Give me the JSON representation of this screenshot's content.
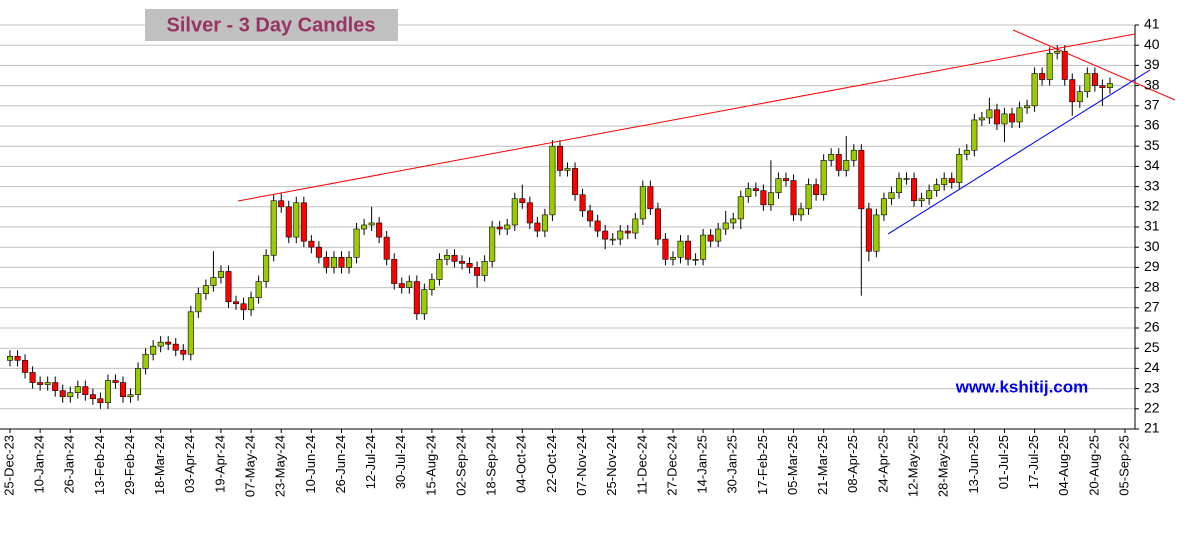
{
  "chart_data": {
    "type": "candlestick",
    "title": "Silver - 3 Day Candles",
    "watermark": "www.kshitij.com",
    "categories": [
      "25-Dec-23",
      null,
      null,
      null,
      "10-Jan-24",
      null,
      null,
      null,
      "26-Jan-24",
      null,
      null,
      null,
      "13-Feb-24",
      null,
      null,
      null,
      "29-Feb-24",
      null,
      null,
      null,
      "18-Mar-24",
      null,
      null,
      null,
      "03-Apr-24",
      null,
      null,
      null,
      "19-Apr-24",
      null,
      null,
      null,
      "07-May-24",
      null,
      null,
      null,
      "23-May-24",
      null,
      null,
      null,
      "10-Jun-24",
      null,
      null,
      null,
      "26-Jun-24",
      null,
      null,
      null,
      "12-Jul-24",
      null,
      null,
      null,
      "30-Jul-24",
      null,
      null,
      null,
      "15-Aug-24",
      null,
      null,
      null,
      "02-Sep-24",
      null,
      null,
      null,
      "18-Sep-24",
      null,
      null,
      null,
      "04-Oct-24",
      null,
      null,
      null,
      "22-Oct-24",
      null,
      null,
      null,
      "07-Nov-24",
      null,
      null,
      null,
      "25-Nov-24",
      null,
      null,
      null,
      "11-Dec-24",
      null,
      null,
      null,
      "27-Dec-24",
      null,
      null,
      null,
      "14-Jan-25",
      null,
      null,
      null,
      "30-Jan-25",
      null,
      null,
      null,
      "17-Feb-25",
      null,
      null,
      null,
      "05-Mar-25",
      null,
      null,
      null,
      "21-Mar-25",
      null,
      null,
      null,
      "08-Apr-25",
      null,
      null,
      null,
      "24-Apr-25",
      null,
      null,
      null,
      "12-May-25",
      null,
      null,
      null,
      "28-May-25",
      null,
      null,
      null,
      "13-Jun-25",
      null,
      null,
      null,
      "01-Jul-25",
      null,
      null,
      null,
      "17-Jul-25",
      null,
      null,
      null,
      "04-Aug-25",
      null,
      null,
      null,
      "20-Aug-25",
      null,
      null,
      null,
      "05-Sep-25"
    ],
    "open": [
      24.4,
      24.6,
      24.4,
      23.8,
      23.3,
      23.2,
      23.3,
      22.9,
      22.6,
      22.8,
      23.1,
      22.7,
      22.5,
      22.3,
      23.4,
      23.3,
      22.6,
      22.7,
      24.0,
      24.7,
      25.1,
      25.3,
      25.2,
      24.9,
      24.7,
      26.8,
      27.7,
      28.1,
      28.5,
      28.8,
      27.3,
      27.2,
      26.9,
      27.5,
      28.3,
      29.6,
      32.3,
      32.0,
      30.5,
      32.2,
      30.3,
      30.0,
      29.5,
      29.0,
      29.5,
      29.0,
      29.5,
      30.9,
      31.1,
      31.2,
      30.5,
      29.4,
      28.2,
      28.0,
      28.3,
      26.7,
      27.9,
      28.4,
      29.4,
      29.6,
      29.3,
      29.2,
      29.0,
      28.6,
      29.3,
      31.0,
      30.9,
      31.1,
      32.4,
      32.2,
      31.2,
      30.8,
      31.6,
      35.0,
      33.8,
      33.9,
      32.6,
      31.8,
      31.3,
      30.8,
      30.4,
      30.4,
      30.8,
      30.7,
      31.4,
      33.0,
      31.9,
      30.4,
      29.4,
      29.5,
      30.3,
      29.4,
      29.4,
      30.6,
      30.3,
      30.9,
      31.2,
      31.4,
      32.5,
      32.9,
      32.8,
      32.1,
      32.7,
      33.4,
      33.3,
      31.6,
      31.9,
      33.1,
      32.6,
      34.3,
      34.6,
      33.8,
      34.3,
      34.8,
      31.9,
      29.8,
      31.6,
      32.4,
      32.7,
      33.4,
      33.4,
      32.3,
      32.4,
      32.8,
      33.1,
      33.4,
      33.2,
      34.6,
      34.8,
      36.3,
      36.4,
      36.8,
      36.1,
      36.6,
      36.2,
      36.9,
      37.0,
      38.6,
      38.3,
      39.6,
      39.7,
      38.3,
      37.2,
      37.7,
      38.6,
      38.0,
      37.9,
      null,
      null
    ],
    "high": [
      24.9,
      24.9,
      24.7,
      24.1,
      23.6,
      23.6,
      23.6,
      23.2,
      23.1,
      23.4,
      23.4,
      23.0,
      22.8,
      23.7,
      23.7,
      23.6,
      23.0,
      24.3,
      25.0,
      25.4,
      25.6,
      25.6,
      25.5,
      25.2,
      27.1,
      28.0,
      28.4,
      29.8,
      29.1,
      29.1,
      27.6,
      27.5,
      27.8,
      28.6,
      29.9,
      32.6,
      32.7,
      32.3,
      32.5,
      32.5,
      30.6,
      30.3,
      29.8,
      29.8,
      29.8,
      29.8,
      31.2,
      31.4,
      32.0,
      31.5,
      30.8,
      29.7,
      28.5,
      28.6,
      28.6,
      28.2,
      28.7,
      29.7,
      29.9,
      29.9,
      29.6,
      29.5,
      29.3,
      29.6,
      31.3,
      31.3,
      31.4,
      32.7,
      33.1,
      32.5,
      31.5,
      31.9,
      35.3,
      35.3,
      34.2,
      34.2,
      32.9,
      32.1,
      31.6,
      31.1,
      30.7,
      31.1,
      31.1,
      31.7,
      33.3,
      33.3,
      32.2,
      30.7,
      29.8,
      30.6,
      30.6,
      29.7,
      30.9,
      30.9,
      31.2,
      31.8,
      31.7,
      32.8,
      33.2,
      33.2,
      33.1,
      34.3,
      33.7,
      33.7,
      33.6,
      32.2,
      33.4,
      33.4,
      34.6,
      34.9,
      34.9,
      35.5,
      35.1,
      35.1,
      32.2,
      31.9,
      32.7,
      33.0,
      33.7,
      33.7,
      33.7,
      32.7,
      33.1,
      33.4,
      33.7,
      33.7,
      34.9,
      35.1,
      36.6,
      36.7,
      37.4,
      37.1,
      36.9,
      36.9,
      37.2,
      37.3,
      38.9,
      38.9,
      39.9,
      40.0,
      40.0,
      38.6,
      38.0,
      38.9,
      38.9,
      38.3,
      38.4,
      null,
      null
    ],
    "low": [
      24.1,
      24.1,
      23.5,
      23.0,
      22.9,
      22.9,
      22.6,
      22.3,
      22.3,
      22.5,
      22.4,
      22.2,
      22.0,
      22.0,
      23.0,
      22.3,
      22.3,
      22.4,
      23.7,
      24.4,
      24.8,
      24.9,
      24.6,
      24.4,
      24.4,
      26.5,
      27.4,
      27.8,
      28.2,
      27.0,
      26.9,
      26.4,
      26.6,
      27.2,
      28.0,
      29.3,
      31.7,
      30.2,
      30.2,
      30.0,
      29.7,
      29.2,
      28.7,
      28.7,
      28.7,
      28.7,
      29.2,
      30.6,
      30.8,
      30.2,
      29.1,
      27.9,
      27.7,
      27.7,
      26.4,
      26.4,
      27.6,
      28.1,
      29.1,
      29.0,
      28.9,
      28.7,
      28.0,
      28.3,
      29.0,
      30.6,
      30.6,
      30.8,
      31.9,
      30.9,
      30.5,
      30.5,
      31.3,
      33.5,
      33.5,
      32.3,
      31.5,
      31.0,
      30.5,
      29.9,
      30.1,
      30.1,
      30.4,
      30.4,
      31.1,
      31.6,
      30.1,
      29.1,
      29.1,
      29.2,
      29.1,
      29.1,
      29.1,
      30.0,
      30.0,
      30.6,
      30.9,
      30.9,
      32.2,
      32.5,
      31.8,
      31.8,
      32.4,
      33.0,
      31.3,
      31.3,
      31.6,
      32.3,
      32.3,
      34.0,
      33.5,
      33.5,
      34.0,
      27.6,
      29.3,
      29.5,
      31.3,
      32.1,
      32.4,
      33.1,
      32.0,
      32.0,
      32.1,
      32.5,
      32.8,
      32.9,
      32.9,
      34.3,
      34.5,
      36.0,
      36.1,
      35.8,
      35.2,
      35.9,
      35.9,
      36.6,
      36.7,
      38.0,
      38.0,
      39.3,
      38.0,
      36.5,
      36.9,
      37.4,
      37.7,
      37.0,
      37.6,
      null,
      null
    ],
    "close": [
      24.6,
      24.4,
      23.8,
      23.3,
      23.2,
      23.3,
      22.9,
      22.6,
      22.8,
      23.1,
      22.7,
      22.5,
      22.3,
      23.4,
      23.3,
      22.6,
      22.7,
      24.0,
      24.7,
      25.1,
      25.3,
      25.2,
      24.9,
      24.7,
      26.8,
      27.7,
      28.1,
      28.5,
      28.8,
      27.3,
      27.2,
      26.9,
      27.5,
      28.3,
      29.6,
      32.3,
      32.0,
      30.5,
      32.2,
      30.3,
      30.0,
      29.5,
      29.0,
      29.5,
      29.0,
      29.5,
      30.9,
      31.1,
      31.2,
      30.5,
      29.4,
      28.2,
      28.0,
      28.3,
      26.7,
      27.9,
      28.4,
      29.4,
      29.6,
      29.3,
      29.2,
      29.0,
      28.6,
      29.3,
      31.0,
      30.9,
      31.1,
      32.4,
      32.2,
      31.2,
      30.8,
      31.6,
      35.0,
      33.8,
      33.9,
      32.6,
      31.8,
      31.3,
      30.8,
      30.4,
      30.4,
      30.8,
      30.7,
      31.4,
      33.0,
      31.9,
      30.4,
      29.4,
      29.5,
      30.3,
      29.4,
      29.4,
      30.6,
      30.3,
      30.9,
      31.2,
      31.4,
      32.5,
      32.9,
      32.8,
      32.1,
      32.7,
      33.4,
      33.3,
      31.6,
      31.9,
      33.1,
      32.6,
      34.3,
      34.6,
      33.8,
      34.3,
      34.8,
      31.9,
      29.8,
      31.6,
      32.4,
      32.7,
      33.4,
      33.4,
      32.3,
      32.4,
      32.8,
      33.1,
      33.4,
      33.2,
      34.6,
      34.8,
      36.3,
      36.4,
      36.8,
      36.1,
      36.6,
      36.2,
      36.9,
      37.0,
      38.6,
      38.3,
      39.6,
      39.7,
      38.3,
      37.2,
      37.7,
      38.6,
      38.0,
      37.9,
      38.1,
      null,
      null
    ],
    "up_color": "#99cc00",
    "down_color": "#ff0000",
    "ylim": [
      21,
      41
    ],
    "yticks": [
      21,
      22,
      23,
      24,
      25,
      26,
      27,
      28,
      29,
      30,
      31,
      32,
      33,
      34,
      35,
      36,
      37,
      38,
      39,
      40,
      41
    ],
    "grid": true
  }
}
